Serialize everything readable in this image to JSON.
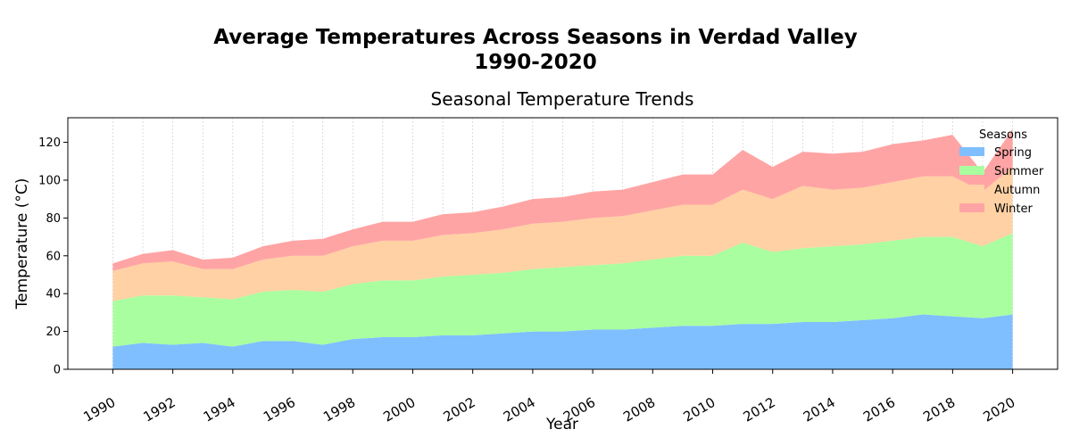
{
  "chart_data": {
    "type": "area",
    "stacked": true,
    "suptitle_line1": "Average Temperatures Across Seasons in Verdad Valley",
    "suptitle_line2": "1990-2020",
    "title": "Seasonal Temperature Trends",
    "xlabel": "Year",
    "ylabel": "Temperature (°C)",
    "xlim": [
      1988.5,
      2021.5
    ],
    "ylim": [
      0,
      133
    ],
    "yticks": [
      0,
      20,
      40,
      60,
      80,
      100,
      120
    ],
    "xticks": [
      1990,
      1992,
      1994,
      1996,
      1998,
      2000,
      2002,
      2004,
      2006,
      2008,
      2010,
      2012,
      2014,
      2016,
      2018,
      2020
    ],
    "grid": "x-dashed",
    "legend": {
      "title": "Seasons",
      "placement": "top-right"
    },
    "x": [
      1990,
      1991,
      1992,
      1993,
      1994,
      1995,
      1996,
      1997,
      1998,
      1999,
      2000,
      2001,
      2002,
      2003,
      2004,
      2005,
      2006,
      2007,
      2008,
      2009,
      2010,
      2011,
      2012,
      2013,
      2014,
      2015,
      2016,
      2017,
      2018,
      2019,
      2020
    ],
    "series": [
      {
        "name": "Spring",
        "color": "#7fbfff",
        "values": [
          12,
          14,
          13,
          14,
          12,
          15,
          15,
          13,
          16,
          17,
          17,
          18,
          18,
          19,
          20,
          20,
          21,
          21,
          22,
          23,
          23,
          24,
          24,
          25,
          25,
          26,
          27,
          29,
          28,
          27,
          29
        ]
      },
      {
        "name": "Summer",
        "color": "#a9ff9f",
        "values": [
          24,
          25,
          26,
          24,
          25,
          26,
          27,
          28,
          29,
          30,
          30,
          31,
          32,
          32,
          33,
          34,
          34,
          35,
          36,
          37,
          37,
          43,
          38,
          39,
          40,
          40,
          41,
          41,
          42,
          38,
          43
        ]
      },
      {
        "name": "Autumn",
        "color": "#ffd1a4",
        "values": [
          16,
          17,
          18,
          15,
          16,
          17,
          18,
          19,
          20,
          21,
          21,
          22,
          22,
          23,
          24,
          24,
          25,
          25,
          26,
          27,
          27,
          28,
          28,
          33,
          30,
          30,
          31,
          32,
          32,
          29,
          35
        ]
      },
      {
        "name": "Winter",
        "color": "#ffa4a4",
        "values": [
          4,
          5,
          6,
          5,
          6,
          7,
          8,
          9,
          9,
          10,
          10,
          11,
          11,
          12,
          13,
          13,
          14,
          14,
          15,
          16,
          16,
          21,
          17,
          18,
          19,
          19,
          20,
          19,
          22,
          10,
          20
        ]
      }
    ]
  }
}
